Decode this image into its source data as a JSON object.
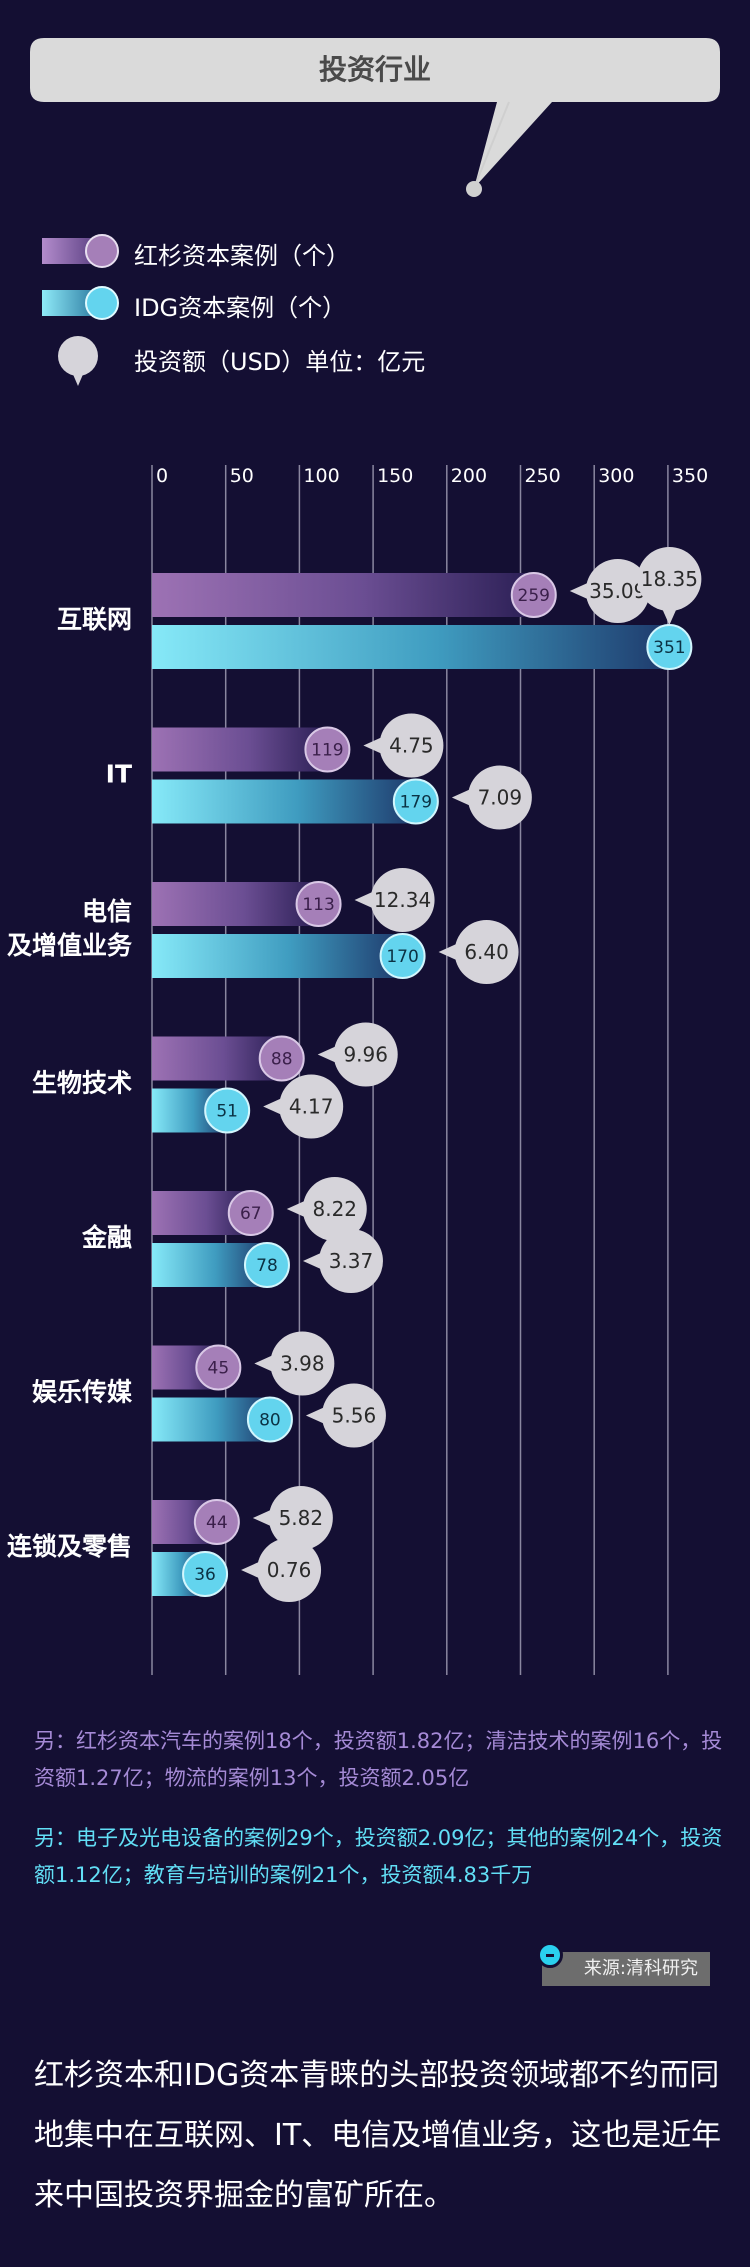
{
  "header": {
    "title": "投资行业"
  },
  "legend": {
    "sequoia_label": "红杉资本案例（个）",
    "idg_label": "IDG资本案例（个）",
    "amount_label": "投资额（USD）单位：亿元"
  },
  "colors": {
    "background": "#140f33",
    "sequoia": "#9b6fb0",
    "sequoia_dot": "#a57fb8",
    "idg": "#7ee6f6",
    "idg_dot": "#63d4ee",
    "amount_bubble": "#d6d4da",
    "gridline": "#8a87a0"
  },
  "chart_data": {
    "type": "bar",
    "orientation": "horizontal",
    "x_ticks": [
      0,
      50,
      100,
      150,
      200,
      250,
      300,
      350
    ],
    "xlim": [
      0,
      350
    ],
    "categories": [
      "互联网",
      "IT",
      "电信\n及增值业务",
      "生物技术",
      "金融",
      "娱乐传媒",
      "连锁及零售"
    ],
    "series": [
      {
        "name": "红杉资本案例（个）",
        "values": [
          259,
          119,
          113,
          88,
          67,
          45,
          44
        ],
        "amounts": [
          "35.09",
          "4.75",
          "12.34",
          "9.96",
          "8.22",
          "3.98",
          "5.82"
        ]
      },
      {
        "name": "IDG资本案例（个）",
        "values": [
          351,
          179,
          170,
          51,
          78,
          80,
          36
        ],
        "amounts": [
          "18.35",
          "7.09",
          "6.40",
          "4.17",
          "3.37",
          "5.56",
          "0.76"
        ]
      }
    ]
  },
  "notes": {
    "sequoia_other": "另：红杉资本汽车的案例18个，投资额1.82亿；清洁技术的案例16个，投资额1.27亿；物流的案例13个，投资额2.05亿",
    "idg_other": "另：电子及光电设备的案例29个，投资额2.09亿；其他的案例24个，投资额1.12亿；教育与培训的案例21个，投资额4.83千万"
  },
  "source": "来源:清科研究",
  "conclusion": "红杉资本和IDG资本青睐的头部投资领域都不约而同地集中在互联网、IT、电信及增值业务，这也是近年来中国投资界掘金的富矿所在。"
}
